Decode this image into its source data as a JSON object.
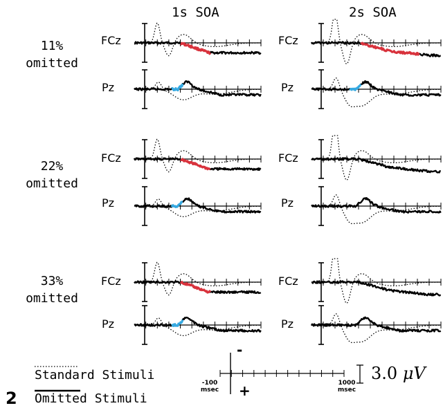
{
  "figure_number": "2",
  "chart_data": {
    "type": "line",
    "columns": [
      "1s SOA",
      "2s SOA"
    ],
    "rows": [
      "11%\nomitted",
      "22%\nomitted",
      "33%\nomitted"
    ],
    "channels": [
      "FCz",
      "Pz"
    ],
    "series": [
      {
        "name": "Standard Stimuli",
        "style": "dotted"
      },
      {
        "name": "Omitted Stimuli",
        "style": "solid"
      }
    ],
    "xlim": [
      -100,
      1000
    ],
    "xunit": "msec",
    "x_tick_labels": [
      "-100",
      "1000"
    ],
    "polarity_labels": [
      "-",
      "+"
    ],
    "amplitude_scale": {
      "value": "3.0",
      "unit": "μV"
    },
    "highlight_colors": {
      "FCz": "#d8323c",
      "Pz": "#36a9e1"
    }
  },
  "legend": {
    "standard": "Standard Stimuli",
    "omitted": "Omitted Stimuli"
  }
}
